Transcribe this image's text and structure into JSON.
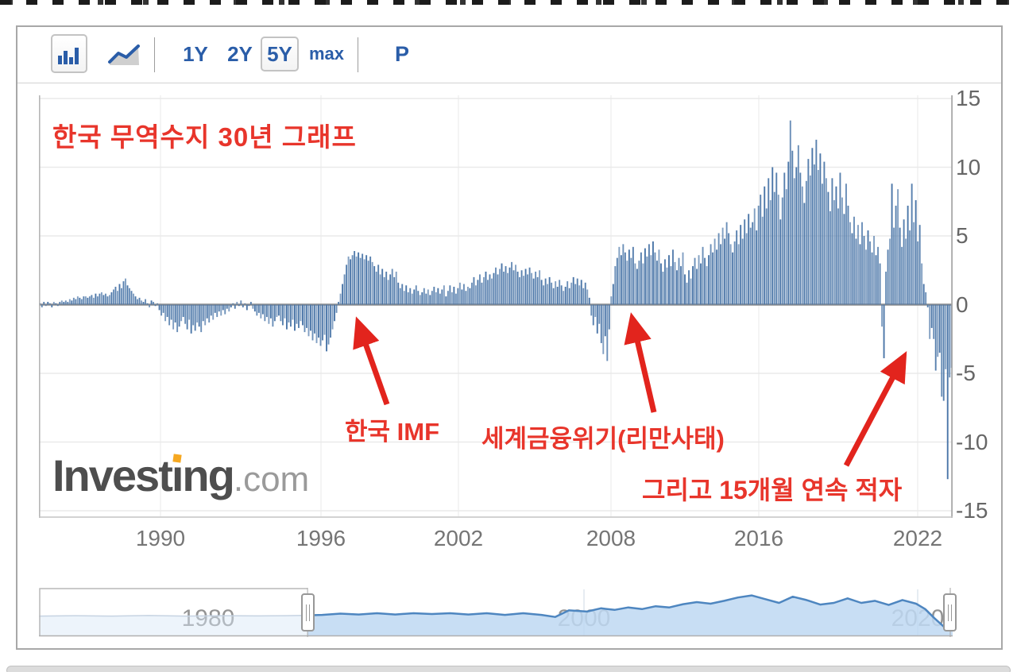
{
  "toolbar": {
    "chart_types": [
      {
        "name": "bar-chart",
        "selected": true
      },
      {
        "name": "line-chart",
        "selected": false
      }
    ],
    "ranges": [
      {
        "label": "1Y",
        "selected": false
      },
      {
        "label": "2Y",
        "selected": false
      },
      {
        "label": "5Y",
        "selected": true
      },
      {
        "label": "max",
        "selected": false
      }
    ],
    "p_label": "P"
  },
  "chart": {
    "title": "한국 무역수지 30년 그래프",
    "annotations": [
      {
        "text": "한국 IMF"
      },
      {
        "text": "세계금융위기(리만사태)"
      },
      {
        "text": "그리고 15개월 연속 적자"
      }
    ],
    "watermark": {
      "name_head": "Invest",
      "name_i": "ı",
      "name_tail": "ng",
      "suffix": ".com"
    },
    "accent_red": "#e8352b",
    "bar_color": "#4b76a8",
    "bar_color_light": "#8fafd4"
  },
  "chart_data": {
    "type": "bar",
    "title": "한국 무역수지 30년 그래프 (Korea monthly trade balance, USD bn)",
    "x_start_year": 1985,
    "frequency": "monthly",
    "ylim": [
      -15,
      15
    ],
    "grid": true,
    "y_tick_values": [
      15,
      10,
      5,
      0,
      -5,
      -10,
      -15
    ],
    "y_tick_labels": [
      "15",
      "10",
      "5",
      "0",
      "-5",
      "-10",
      "-15"
    ],
    "x_tick_labels": [
      "1990",
      "1996",
      "2002",
      "2008",
      "2016",
      "2022"
    ],
    "values": [
      0.1,
      -0.2,
      0.2,
      -0.1,
      0.2,
      0.1,
      -0.2,
      0.2,
      0.1,
      -0.1,
      0.2,
      0.3,
      0.2,
      0.3,
      0.2,
      0.4,
      0.3,
      0.5,
      0.4,
      0.6,
      0.5,
      0.4,
      0.6,
      0.6,
      0.5,
      0.6,
      0.7,
      0.5,
      0.8,
      0.6,
      0.8,
      0.9,
      0.7,
      0.8,
      0.6,
      0.7,
      0.9,
      1.1,
      1.3,
      1.0,
      1.5,
      1.2,
      1.7,
      1.9,
      1.4,
      1.2,
      1.0,
      0.8,
      0.6,
      0.4,
      0.5,
      0.3,
      0.2,
      0.4,
      0.1,
      -0.2,
      0.3,
      0.2,
      -0.1,
      0.1,
      -0.4,
      -0.8,
      -0.6,
      -1.2,
      -0.9,
      -1.5,
      -1.1,
      -1.8,
      -1.3,
      -2.0,
      -1.6,
      -1.2,
      -0.9,
      -1.4,
      -1.8,
      -1.1,
      -2.1,
      -1.5,
      -1.9,
      -1.3,
      -1.6,
      -2.0,
      -1.2,
      -1.5,
      -1.0,
      -1.3,
      -0.8,
      -1.1,
      -0.6,
      -0.9,
      -0.5,
      -0.8,
      -0.4,
      -0.7,
      -0.3,
      -0.5,
      -0.2,
      0.1,
      -0.3,
      0.2,
      -0.1,
      0.3,
      -0.2,
      0.1,
      -0.4,
      -0.1,
      0.2,
      -0.3,
      -0.5,
      -0.8,
      -0.6,
      -1.0,
      -0.7,
      -1.2,
      -0.9,
      -1.4,
      -1.0,
      -1.6,
      -1.2,
      -0.9,
      -0.8,
      -1.2,
      -1.5,
      -1.0,
      -1.8,
      -1.3,
      -1.6,
      -1.1,
      -1.9,
      -1.4,
      -1.7,
      -1.2,
      -1.5,
      -2.0,
      -1.7,
      -2.3,
      -1.9,
      -2.6,
      -2.1,
      -2.8,
      -2.4,
      -3.0,
      -2.6,
      -2.2,
      -3.4,
      -2.9,
      -2.4,
      -1.8,
      -1.2,
      -0.6,
      0.2,
      0.8,
      1.5,
      2.2,
      2.9,
      3.5,
      3.3,
      3.6,
      3.9,
      3.5,
      3.8,
      3.4,
      3.7,
      3.3,
      3.6,
      3.2,
      3.5,
      3.1,
      2.8,
      2.4,
      2.9,
      2.2,
      2.6,
      2.0,
      2.4,
      1.8,
      2.2,
      2.6,
      2.0,
      2.4,
      1.6,
      1.2,
      1.5,
      1.0,
      1.4,
      0.9,
      1.2,
      0.8,
      1.1,
      1.4,
      1.0,
      0.7,
      0.9,
      1.2,
      0.8,
      1.1,
      0.7,
      1.0,
      1.3,
      0.9,
      1.2,
      0.8,
      1.1,
      1.4,
      0.6,
      1.0,
      1.4,
      0.9,
      1.3,
      0.8,
      1.2,
      1.6,
      1.1,
      1.5,
      1.0,
      1.3,
      1.2,
      1.6,
      2.0,
      1.4,
      1.8,
      2.2,
      1.6,
      2.0,
      2.4,
      1.8,
      2.2,
      1.9,
      2.3,
      2.7,
      2.2,
      2.6,
      3.0,
      2.4,
      2.8,
      2.3,
      2.7,
      3.1,
      2.5,
      2.9,
      2.4,
      2.0,
      2.5,
      2.1,
      2.6,
      2.2,
      2.7,
      2.3,
      1.9,
      2.4,
      2.0,
      2.5,
      1.8,
      1.4,
      1.9,
      1.5,
      2.0,
      1.6,
      1.2,
      1.7,
      1.3,
      1.8,
      1.4,
      1.0,
      1.3,
      1.7,
      1.2,
      1.6,
      2.0,
      1.5,
      1.9,
      1.4,
      1.8,
      1.2,
      1.6,
      1.1,
      0.5,
      -0.8,
      -1.5,
      -0.9,
      -2.1,
      -1.4,
      -2.8,
      -3.6,
      -2.3,
      -4.1,
      -1.8,
      0.6,
      1.5,
      2.8,
      3.4,
      4.2,
      3.6,
      4.4,
      3.8,
      3.2,
      4.0,
      3.4,
      4.2,
      3.0,
      2.6,
      3.2,
      3.8,
      3.0,
      4.1,
      3.5,
      4.4,
      3.6,
      4.6,
      3.8,
      3.2,
      4.0,
      3.0,
      2.4,
      3.3,
      2.7,
      3.6,
      2.8,
      4.0,
      3.1,
      2.5,
      3.4,
      2.8,
      3.8,
      2.2,
      1.6,
      2.5,
      1.9,
      2.8,
      3.4,
      2.6,
      3.6,
      3.0,
      4.2,
      3.4,
      2.8,
      3.6,
      4.4,
      3.8,
      4.8,
      4.0,
      5.2,
      4.4,
      5.6,
      4.8,
      6.0,
      5.2,
      4.4,
      3.8,
      4.6,
      5.4,
      4.4,
      5.8,
      4.8,
      6.2,
      5.2,
      6.6,
      5.6,
      6.0,
      7.0,
      5.4,
      7.2,
      8.0,
      6.4,
      8.6,
      7.0,
      9.2,
      7.6,
      10.0,
      8.2,
      9.6,
      8.0,
      6.2,
      7.8,
      9.6,
      8.4,
      10.4,
      13.4,
      11.2,
      9.2,
      10.0,
      11.6,
      9.6,
      8.6,
      7.4,
      9.0,
      10.6,
      9.4,
      11.4,
      10.2,
      12.0,
      9.8,
      11.0,
      8.8,
      10.4,
      9.2,
      8.2,
      6.8,
      9.2,
      7.6,
      8.6,
      7.0,
      9.6,
      7.8,
      6.6,
      8.8,
      7.2,
      6.0,
      5.2,
      6.4,
      4.8,
      5.8,
      4.4,
      6.0,
      5.0,
      4.0,
      5.4,
      4.6,
      3.8,
      5.0,
      3.6,
      4.2,
      3.0,
      -1.6,
      -3.9,
      2.4,
      4.0,
      4.8,
      8.8,
      5.6,
      7.2,
      8.4,
      5.6,
      4.2,
      6.2,
      4.8,
      7.2,
      5.4,
      8.8,
      6.0,
      7.6,
      4.6,
      5.8,
      3.0,
      1.5,
      0.9,
      -0.2,
      -2.5,
      -1.7,
      -2.5,
      -4.8,
      -3.8,
      -3.5,
      -6.7,
      -7.0,
      -4.7,
      -12.7,
      -5.3,
      -4.6
    ],
    "navigator": {
      "labels": [
        "1980",
        "2000",
        "2020"
      ],
      "selected_from": 0.294,
      "points": [
        [
          0,
          0.43
        ],
        [
          0.04,
          0.44
        ],
        [
          0.08,
          0.43
        ],
        [
          0.12,
          0.445
        ],
        [
          0.16,
          0.43
        ],
        [
          0.2,
          0.44
        ],
        [
          0.24,
          0.435
        ],
        [
          0.27,
          0.44
        ],
        [
          0.294,
          0.45
        ],
        [
          0.31,
          0.46
        ],
        [
          0.33,
          0.49
        ],
        [
          0.35,
          0.47
        ],
        [
          0.37,
          0.5
        ],
        [
          0.39,
          0.47
        ],
        [
          0.41,
          0.5
        ],
        [
          0.43,
          0.48
        ],
        [
          0.45,
          0.5
        ],
        [
          0.47,
          0.47
        ],
        [
          0.49,
          0.5
        ],
        [
          0.51,
          0.46
        ],
        [
          0.53,
          0.5
        ],
        [
          0.55,
          0.46
        ],
        [
          0.565,
          0.41
        ],
        [
          0.58,
          0.57
        ],
        [
          0.6,
          0.54
        ],
        [
          0.615,
          0.62
        ],
        [
          0.63,
          0.58
        ],
        [
          0.645,
          0.64
        ],
        [
          0.66,
          0.6
        ],
        [
          0.675,
          0.67
        ],
        [
          0.69,
          0.64
        ],
        [
          0.705,
          0.72
        ],
        [
          0.72,
          0.77
        ],
        [
          0.735,
          0.73
        ],
        [
          0.75,
          0.8
        ],
        [
          0.765,
          0.88
        ],
        [
          0.78,
          0.93
        ],
        [
          0.795,
          0.84
        ],
        [
          0.81,
          0.75
        ],
        [
          0.825,
          0.9
        ],
        [
          0.84,
          0.82
        ],
        [
          0.855,
          0.71
        ],
        [
          0.87,
          0.75
        ],
        [
          0.885,
          0.86
        ],
        [
          0.9,
          0.75
        ],
        [
          0.915,
          0.8
        ],
        [
          0.93,
          0.7
        ],
        [
          0.945,
          0.82
        ],
        [
          0.96,
          0.73
        ],
        [
          0.97,
          0.6
        ],
        [
          0.98,
          0.38
        ],
        [
          0.99,
          0.18
        ],
        [
          1.0,
          0.13
        ]
      ]
    }
  }
}
